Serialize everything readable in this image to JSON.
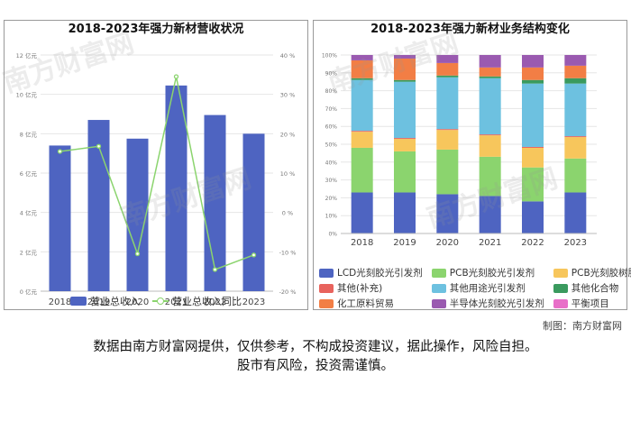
{
  "left_chart": {
    "title": "2018-2023年强力新材营收状况",
    "legend_bar": "营业总收入",
    "legend_line": "营业总收入同比",
    "y_left_ticks": [
      "0 亿元",
      "2 亿元",
      "4 亿元",
      "6 亿元",
      "8 亿元",
      "10 亿元",
      "12 亿元"
    ],
    "y_right_ticks": [
      "-20 %",
      "-10 %",
      "0 %",
      "10 %",
      "20 %",
      "30 %",
      "40 %"
    ]
  },
  "right_chart": {
    "title": "2018-2023年强力新材业务结构变化",
    "y_ticks": [
      "0%",
      "10%",
      "20%",
      "30%",
      "40%",
      "50%",
      "60%",
      "70%",
      "80%",
      "90%",
      "100%"
    ]
  },
  "chart_data": [
    {
      "type": "bar",
      "title": "2018-2023年强力新材营收状况",
      "categories": [
        "2018",
        "2019",
        "2020",
        "2021",
        "2022",
        "2023"
      ],
      "series": [
        {
          "name": "营业总收入",
          "type": "bar",
          "axis": "left",
          "unit": "亿元",
          "values": [
            7.4,
            8.7,
            7.75,
            10.45,
            8.95,
            8.0
          ],
          "color": "#4e64c1"
        },
        {
          "name": "营业总收入同比",
          "type": "line",
          "axis": "right",
          "unit": "%",
          "values": [
            15.5,
            16.8,
            -10.5,
            34.5,
            -14.5,
            -10.8
          ],
          "color": "#8bd46e"
        }
      ],
      "ylim_left": [
        0,
        12
      ],
      "ylim_right": [
        -20,
        40
      ],
      "grid": true,
      "legend": "bottom"
    },
    {
      "type": "bar",
      "stacked": true,
      "percent": true,
      "title": "2018-2023年强力新材业务结构变化",
      "categories": [
        "2018",
        "2019",
        "2020",
        "2021",
        "2022",
        "2023"
      ],
      "series": [
        {
          "name": "LCD光刻胶光引发剂",
          "color": "#4e64c1",
          "values": [
            23,
            23,
            22,
            21,
            18,
            23
          ]
        },
        {
          "name": "PCB光刻胶光引发剂",
          "color": "#8bd46e",
          "values": [
            25,
            23,
            25,
            22,
            19,
            19
          ]
        },
        {
          "name": "PCB光刻胶树脂",
          "color": "#f7c65c",
          "values": [
            9,
            7,
            11,
            12,
            11,
            12
          ]
        },
        {
          "name": "其他(补充)",
          "color": "#e8635d",
          "values": [
            0.5,
            0.5,
            0.5,
            0.5,
            0.5,
            0.5
          ]
        },
        {
          "name": "其他用途光引发剂",
          "color": "#6dc1e0",
          "values": [
            28.5,
            31.5,
            29,
            31.5,
            35.5,
            29.5
          ]
        },
        {
          "name": "其他化合物",
          "color": "#3a9a5e",
          "values": [
            1,
            1,
            1,
            1,
            2,
            3
          ]
        },
        {
          "name": "化工原料贸易",
          "color": "#f27e45",
          "values": [
            10,
            12,
            7,
            5,
            7,
            7
          ]
        },
        {
          "name": "半导体光刻胶光引发剂",
          "color": "#9a5ab0",
          "values": [
            3,
            2,
            4.5,
            7,
            7,
            6
          ]
        },
        {
          "name": "平衡项目",
          "color": "#e86fc8",
          "values": [
            0,
            0,
            0,
            0,
            0,
            0
          ]
        }
      ],
      "ylim": [
        0,
        100
      ],
      "grid": true,
      "legend": "bottom"
    }
  ],
  "credit": "制图：南方财富网",
  "watermark": "南方财富网",
  "disclaimer_line1": "数据由南方财富网提供，仅供参考，不构成投资建议，据此操作，风险自担。",
  "disclaimer_line2": "股市有风险，投资需谨慎。"
}
